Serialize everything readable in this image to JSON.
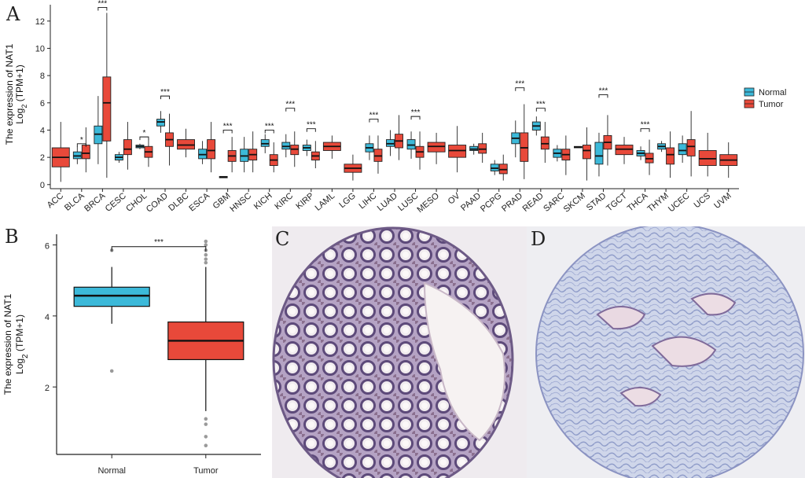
{
  "panel_letters": {
    "a": "A",
    "b": "B",
    "c": "C",
    "d": "D"
  },
  "legend": {
    "normal": "Normal",
    "tumor": "Tumor"
  },
  "colors": {
    "normal": "#3cb9d9",
    "tumor": "#e8493a",
    "outlier": "#9a9a9a"
  },
  "chart_data": [
    {
      "panel": "A",
      "type": "box",
      "ylabel_line1": "The expression of NAT1",
      "ylabel_line2_prefix": "Log",
      "ylabel_line2_sub": "2",
      "ylabel_line2_suffix": " (TPM+1)",
      "ylim": [
        -0.3,
        13.2
      ],
      "yticks": [
        0,
        2,
        4,
        6,
        8,
        10,
        12
      ],
      "categories": [
        "ACC",
        "BLCA",
        "BRCA",
        "CESC",
        "CHOL",
        "COAD",
        "DLBC",
        "ESCA",
        "GBM",
        "HNSC",
        "KICH",
        "KIRC",
        "KIRP",
        "LAML",
        "LGG",
        "LIHC",
        "LUAD",
        "LUSC",
        "MESO",
        "OV",
        "PAAD",
        "PCPG",
        "PRAD",
        "READ",
        "SARC",
        "SKCM",
        "STAD",
        "TGCT",
        "THCA",
        "THYM",
        "UCEC",
        "UCS",
        "UVM"
      ],
      "series": [
        {
          "name": "Normal",
          "boxes": [
            null,
            {
              "cat": "BLCA",
              "q1": 1.9,
              "med": 2.1,
              "q3": 2.4,
              "lo": 1.5,
              "hi": 2.8
            },
            {
              "cat": "BRCA",
              "q1": 3.0,
              "med": 3.7,
              "q3": 4.3,
              "lo": 1.5,
              "hi": 6.5
            },
            {
              "cat": "CESC",
              "q1": 1.8,
              "med": 2.0,
              "q3": 2.2,
              "lo": 1.6,
              "hi": 2.4
            },
            {
              "cat": "CHOL",
              "q1": 2.7,
              "med": 2.8,
              "q3": 2.9,
              "lo": 2.6,
              "hi": 3.0
            },
            {
              "cat": "COAD",
              "q1": 4.3,
              "med": 4.6,
              "q3": 4.8,
              "lo": 3.8,
              "hi": 5.4
            },
            null,
            {
              "cat": "ESCA",
              "q1": 1.9,
              "med": 2.2,
              "q3": 2.6,
              "lo": 1.5,
              "hi": 3.2
            },
            {
              "cat": "GBM",
              "q1": 0.5,
              "med": 0.55,
              "q3": 0.6,
              "lo": 0.5,
              "hi": 0.6
            },
            {
              "cat": "HNSC",
              "q1": 1.7,
              "med": 2.1,
              "q3": 2.6,
              "lo": 0.9,
              "hi": 3.5
            },
            {
              "cat": "KICH",
              "q1": 2.8,
              "med": 3.0,
              "q3": 3.3,
              "lo": 2.3,
              "hi": 3.7
            },
            {
              "cat": "KIRC",
              "q1": 2.6,
              "med": 2.8,
              "q3": 3.1,
              "lo": 2.0,
              "hi": 3.7
            },
            {
              "cat": "KIRP",
              "q1": 2.5,
              "med": 2.7,
              "q3": 2.9,
              "lo": 2.1,
              "hi": 3.3
            },
            null,
            null,
            {
              "cat": "LIHC",
              "q1": 2.4,
              "med": 2.7,
              "q3": 3.0,
              "lo": 1.8,
              "hi": 3.6
            },
            {
              "cat": "LUAD",
              "q1": 2.8,
              "med": 3.0,
              "q3": 3.3,
              "lo": 2.1,
              "hi": 4.0
            },
            {
              "cat": "LUSC",
              "q1": 2.6,
              "med": 2.9,
              "q3": 3.3,
              "lo": 1.9,
              "hi": 3.9
            },
            null,
            null,
            {
              "cat": "PAAD",
              "q1": 2.5,
              "med": 2.6,
              "q3": 2.8,
              "lo": 2.2,
              "hi": 3.0
            },
            {
              "cat": "PCPG",
              "q1": 1.0,
              "med": 1.2,
              "q3": 1.5,
              "lo": 0.7,
              "hi": 1.8
            },
            {
              "cat": "PRAD",
              "q1": 3.0,
              "med": 3.4,
              "q3": 3.8,
              "lo": 2.0,
              "hi": 4.7
            },
            {
              "cat": "READ",
              "q1": 4.0,
              "med": 4.3,
              "q3": 4.6,
              "lo": 3.6,
              "hi": 5.0
            },
            {
              "cat": "SARC",
              "q1": 2.0,
              "med": 2.3,
              "q3": 2.6,
              "lo": 1.7,
              "hi": 2.9
            },
            {
              "cat": "SKCM",
              "q1": 2.7,
              "med": 2.75,
              "q3": 2.8,
              "lo": 2.7,
              "hi": 2.8
            },
            {
              "cat": "STAD",
              "q1": 1.5,
              "med": 2.1,
              "q3": 3.1,
              "lo": 0.6,
              "hi": 3.8
            },
            null,
            {
              "cat": "THCA",
              "q1": 2.1,
              "med": 2.3,
              "q3": 2.5,
              "lo": 1.8,
              "hi": 2.8
            },
            {
              "cat": "THYM",
              "q1": 2.6,
              "med": 2.8,
              "q3": 3.0,
              "lo": 2.4,
              "hi": 3.2
            },
            {
              "cat": "UCEC",
              "q1": 2.2,
              "med": 2.5,
              "q3": 3.0,
              "lo": 1.6,
              "hi": 3.6
            },
            null,
            null
          ]
        },
        {
          "name": "Tumor",
          "boxes": [
            {
              "cat": "ACC",
              "q1": 1.3,
              "med": 2.0,
              "q3": 2.7,
              "lo": 0.2,
              "hi": 4.6
            },
            {
              "cat": "BLCA",
              "q1": 1.9,
              "med": 2.3,
              "q3": 2.9,
              "lo": 0.9,
              "hi": 4.2
            },
            {
              "cat": "BRCA",
              "q1": 3.2,
              "med": 6.0,
              "q3": 7.9,
              "lo": 0.5,
              "hi": 12.6
            },
            {
              "cat": "CESC",
              "q1": 2.2,
              "med": 2.6,
              "q3": 3.3,
              "lo": 1.1,
              "hi": 4.6
            },
            {
              "cat": "CHOL",
              "q1": 2.0,
              "med": 2.4,
              "q3": 2.8,
              "lo": 1.3,
              "hi": 3.4
            },
            {
              "cat": "COAD",
              "q1": 2.8,
              "med": 3.3,
              "q3": 3.8,
              "lo": 1.4,
              "hi": 5.2
            },
            {
              "cat": "DLBC",
              "q1": 2.6,
              "med": 2.9,
              "q3": 3.3,
              "lo": 2.0,
              "hi": 4.1
            },
            {
              "cat": "ESCA",
              "q1": 1.9,
              "med": 2.5,
              "q3": 3.3,
              "lo": 0.9,
              "hi": 4.6
            },
            {
              "cat": "GBM",
              "q1": 1.7,
              "med": 2.1,
              "q3": 2.5,
              "lo": 0.9,
              "hi": 3.5
            },
            {
              "cat": "HNSC",
              "q1": 1.8,
              "med": 2.2,
              "q3": 2.6,
              "lo": 0.9,
              "hi": 3.9
            },
            {
              "cat": "KICH",
              "q1": 1.4,
              "med": 1.8,
              "q3": 2.2,
              "lo": 0.9,
              "hi": 3.1
            },
            {
              "cat": "KIRC",
              "q1": 2.2,
              "med": 2.6,
              "q3": 2.9,
              "lo": 1.3,
              "hi": 3.9
            },
            {
              "cat": "KIRP",
              "q1": 1.8,
              "med": 2.1,
              "q3": 2.4,
              "lo": 1.2,
              "hi": 3.2
            },
            {
              "cat": "LAML",
              "q1": 2.5,
              "med": 2.8,
              "q3": 3.1,
              "lo": 1.9,
              "hi": 3.6
            },
            {
              "cat": "LGG",
              "q1": 0.9,
              "med": 1.2,
              "q3": 1.5,
              "lo": 0.3,
              "hi": 2.2
            },
            {
              "cat": "LIHC",
              "q1": 1.7,
              "med": 2.1,
              "q3": 2.6,
              "lo": 0.8,
              "hi": 3.6
            },
            {
              "cat": "LUAD",
              "q1": 2.7,
              "med": 3.2,
              "q3": 3.7,
              "lo": 1.8,
              "hi": 5.1
            },
            {
              "cat": "LUSC",
              "q1": 2.0,
              "med": 2.4,
              "q3": 2.8,
              "lo": 1.1,
              "hi": 3.9
            },
            {
              "cat": "MESO",
              "q1": 2.4,
              "med": 2.8,
              "q3": 3.1,
              "lo": 1.5,
              "hi": 3.8
            },
            {
              "cat": "OV",
              "q1": 2.0,
              "med": 2.5,
              "q3": 2.9,
              "lo": 0.9,
              "hi": 4.3
            },
            {
              "cat": "PAAD",
              "q1": 2.3,
              "med": 2.6,
              "q3": 3.0,
              "lo": 1.6,
              "hi": 3.8
            },
            {
              "cat": "PCPG",
              "q1": 0.8,
              "med": 1.1,
              "q3": 1.5,
              "lo": 0.3,
              "hi": 2.2
            },
            {
              "cat": "PRAD",
              "q1": 1.7,
              "med": 2.7,
              "q3": 3.8,
              "lo": 0.4,
              "hi": 5.9
            },
            {
              "cat": "READ",
              "q1": 2.6,
              "med": 3.0,
              "q3": 3.5,
              "lo": 1.6,
              "hi": 4.6
            },
            {
              "cat": "SARC",
              "q1": 1.8,
              "med": 2.2,
              "q3": 2.6,
              "lo": 0.7,
              "hi": 3.6
            },
            {
              "cat": "SKCM",
              "q1": 1.9,
              "med": 2.5,
              "q3": 2.9,
              "lo": 0.3,
              "hi": 4.2
            },
            {
              "cat": "STAD",
              "q1": 2.6,
              "med": 3.1,
              "q3": 3.6,
              "lo": 1.4,
              "hi": 5.1
            },
            {
              "cat": "TGCT",
              "q1": 2.2,
              "med": 2.6,
              "q3": 2.9,
              "lo": 1.5,
              "hi": 3.5
            },
            {
              "cat": "THCA",
              "q1": 1.6,
              "med": 1.9,
              "q3": 2.3,
              "lo": 0.7,
              "hi": 3.3
            },
            {
              "cat": "THYM",
              "q1": 1.5,
              "med": 2.2,
              "q3": 2.7,
              "lo": 0.5,
              "hi": 3.9
            },
            {
              "cat": "UCEC",
              "q1": 2.1,
              "med": 2.8,
              "q3": 3.3,
              "lo": 0.6,
              "hi": 5.4
            },
            {
              "cat": "UCS",
              "q1": 1.4,
              "med": 1.9,
              "q3": 2.5,
              "lo": 0.6,
              "hi": 3.8
            },
            {
              "cat": "UVM",
              "q1": 1.4,
              "med": 1.8,
              "q3": 2.2,
              "lo": 0.5,
              "hi": 3.1
            }
          ]
        }
      ],
      "significance": [
        {
          "cat": "BLCA",
          "label": "*"
        },
        {
          "cat": "BRCA",
          "label": "***"
        },
        {
          "cat": "CHOL",
          "label": "*"
        },
        {
          "cat": "COAD",
          "label": "***"
        },
        {
          "cat": "GBM",
          "label": "***"
        },
        {
          "cat": "KICH",
          "label": "***"
        },
        {
          "cat": "KIRC",
          "label": "***"
        },
        {
          "cat": "KIRP",
          "label": "***"
        },
        {
          "cat": "LIHC",
          "label": "***"
        },
        {
          "cat": "LUSC",
          "label": "***"
        },
        {
          "cat": "PRAD",
          "label": "***"
        },
        {
          "cat": "READ",
          "label": "***"
        },
        {
          "cat": "STAD",
          "label": "***"
        },
        {
          "cat": "THCA",
          "label": "***"
        }
      ],
      "significance_y": [
        3.0,
        13.0,
        3.5,
        6.5,
        4.0,
        4.0,
        5.6,
        4.1,
        4.8,
        5.0,
        7.1,
        5.6,
        6.6,
        4.1
      ]
    },
    {
      "panel": "B",
      "type": "box",
      "ylabel_line1": "The expression of NAT1",
      "ylabel_line2_prefix": "Log",
      "ylabel_line2_sub": "2",
      "ylabel_line2_suffix": " (TPM+1)",
      "ylim": [
        0.1,
        6.3
      ],
      "yticks": [
        2,
        4,
        6
      ],
      "categories": [
        "Normal",
        "Tumor"
      ],
      "boxes": [
        {
          "name": "Normal",
          "q1": 4.27,
          "med": 4.57,
          "q3": 4.81,
          "lo": 3.78,
          "hi": 5.38,
          "outliers": [
            2.45,
            5.85
          ]
        },
        {
          "name": "Tumor",
          "q1": 2.77,
          "med": 3.3,
          "q3": 3.83,
          "lo": 1.32,
          "hi": 5.38,
          "outliers": [
            0.35,
            0.6,
            0.95,
            1.1,
            5.5,
            5.6,
            5.72,
            5.85,
            6.0,
            6.1
          ]
        }
      ],
      "significance": {
        "label": "***",
        "y": 5.95
      }
    }
  ]
}
